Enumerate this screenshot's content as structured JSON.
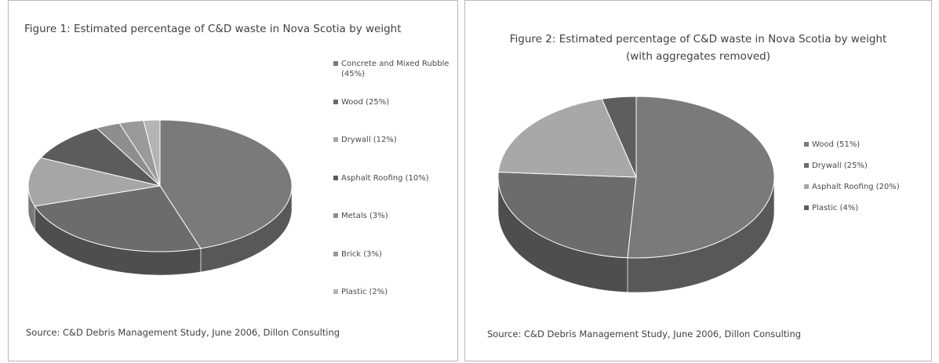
{
  "chart_data": [
    {
      "type": "pie",
      "title": "Figure 1: Estimated percentage of C&D waste in Nova Scotia by weight",
      "source": "Source: C&D Debris Management Study, June 2006, Dillon Consulting",
      "legend_position": "right",
      "style": "3d",
      "slices": [
        {
          "label": "Concrete and Mixed Rubble (45%)",
          "value": 45,
          "color": "#7a7a7a"
        },
        {
          "label": "Wood (25%)",
          "value": 25,
          "color": "#6c6c6c"
        },
        {
          "label": "Drywall (12%)",
          "value": 12,
          "color": "#a6a6a6"
        },
        {
          "label": "Asphalt Roofing (10%)",
          "value": 10,
          "color": "#5c5c5c"
        },
        {
          "label": "Metals (3%)",
          "value": 3,
          "color": "#8e8e8e"
        },
        {
          "label": "Brick (3%)",
          "value": 3,
          "color": "#9a9a9a"
        },
        {
          "label": "Plastic (2%)",
          "value": 2,
          "color": "#b4b4b4"
        }
      ]
    },
    {
      "type": "pie",
      "title": [
        "Figure 2: Estimated percentage of C&D waste in Nova Scotia by weight",
        "(with aggregates removed)"
      ],
      "source": "Source: C&D Debris Management Study, June 2006, Dillon Consulting",
      "legend_position": "right",
      "style": "3d",
      "slices": [
        {
          "label": "Wood (51%)",
          "value": 51,
          "color": "#7a7a7a"
        },
        {
          "label": "Drywall (25%)",
          "value": 25,
          "color": "#6c6c6c"
        },
        {
          "label": "Asphalt Roofing (20%)",
          "value": 20,
          "color": "#a8a8a8"
        },
        {
          "label": "Plastic (4%)",
          "value": 4,
          "color": "#5e5e5e"
        }
      ]
    }
  ]
}
